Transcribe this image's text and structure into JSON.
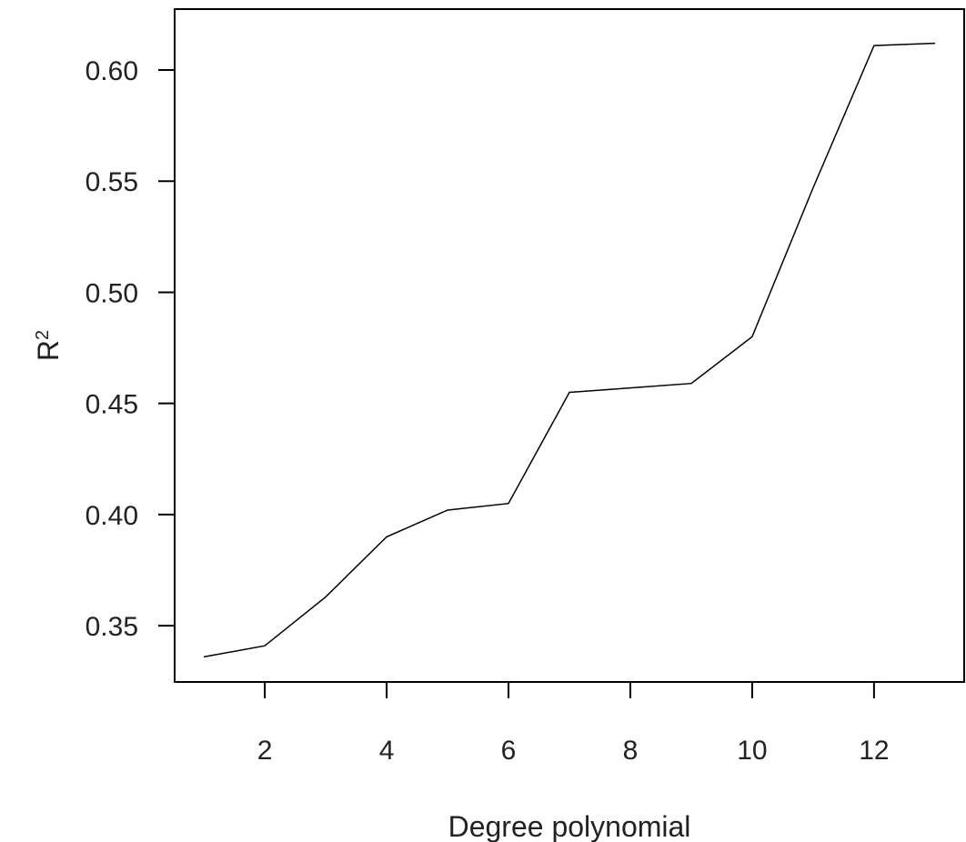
{
  "chart_data": {
    "type": "line",
    "title": "",
    "xlabel": "Degree polynomial",
    "ylabel": "R",
    "ylabel_superscript": "2",
    "x": [
      1,
      2,
      3,
      4,
      5,
      6,
      7,
      8,
      9,
      10,
      11,
      12,
      13
    ],
    "series": [
      {
        "values": [
          0.336,
          0.341,
          0.363,
          0.39,
          0.402,
          0.405,
          0.455,
          0.457,
          0.459,
          0.48,
          0.547,
          0.611,
          0.612
        ]
      }
    ],
    "xlim": [
      0.52,
      13.48
    ],
    "ylim": [
      0.3247,
      0.6274
    ],
    "xticks": [
      2,
      4,
      6,
      8,
      10,
      12
    ],
    "xtick_labels": [
      "2",
      "4",
      "6",
      "8",
      "10",
      "12"
    ],
    "yticks": [
      0.35,
      0.4,
      0.45,
      0.5,
      0.55,
      0.6
    ],
    "ytick_labels": [
      "0.35",
      "0.40",
      "0.45",
      "0.50",
      "0.55",
      "0.60"
    ],
    "grid": false,
    "line_color": "#000000"
  }
}
